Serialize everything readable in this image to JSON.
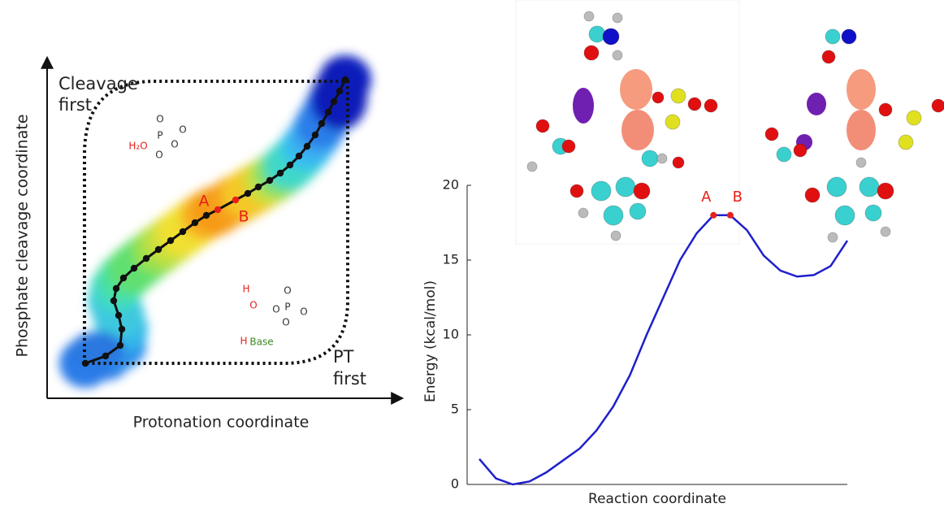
{
  "chart_data": [
    {
      "type": "schematic",
      "xlabel": "Protonation coordinate",
      "ylabel": "Phosphate cleavage coordinate",
      "corner_labels": [
        [
          "Cleavage",
          "first"
        ],
        [
          "PT",
          "first"
        ]
      ],
      "point_labels": [
        "A",
        "B"
      ],
      "scheme_labels": [
        "H₂O",
        "P",
        "O",
        "O",
        "O",
        "O",
        "H",
        "O",
        "P",
        "O",
        "O",
        "O",
        "O",
        "H",
        "Base"
      ]
    },
    {
      "type": "line",
      "xlabel": "Reaction coordinate",
      "ylabel": "Energy (kcal/mol)",
      "ylim": [
        0,
        20
      ],
      "yticks": [
        0,
        5,
        10,
        15,
        20
      ],
      "categories": [
        null,
        null,
        null,
        null,
        null,
        null,
        null,
        null,
        null,
        null,
        null,
        null,
        null,
        null,
        null,
        null,
        null,
        null,
        null,
        null,
        null,
        null,
        null
      ],
      "series": [
        {
          "color": "#1f1fcc",
          "values": [
            1.7,
            0.4,
            0.0,
            0.2,
            0.8,
            1.6,
            2.4,
            3.6,
            5.2,
            7.3,
            10.0,
            12.5,
            15.0,
            16.8,
            18.0,
            18.0,
            17.0,
            15.3,
            14.3,
            13.9,
            14.0,
            14.6,
            16.3
          ]
        }
      ],
      "annotations": [
        {
          "text": "A",
          "index": 14
        },
        {
          "text": "B",
          "index": 15
        }
      ],
      "annotation_color": "#e8201a"
    }
  ]
}
